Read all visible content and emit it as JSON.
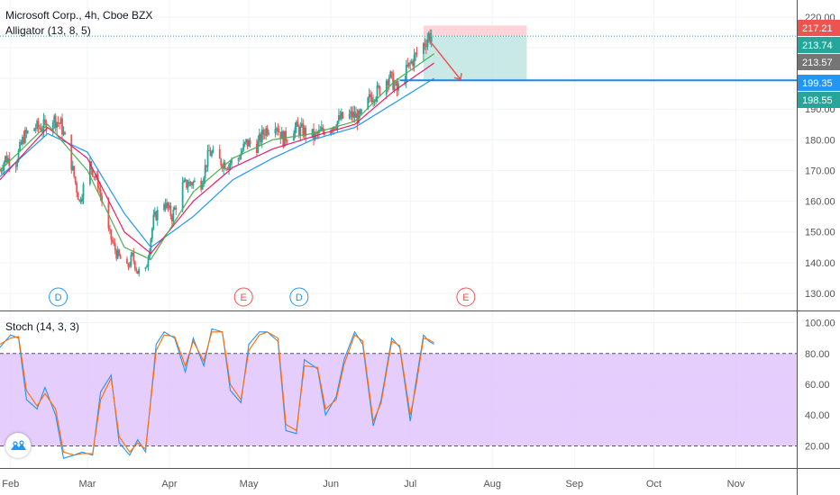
{
  "header": {
    "title": "Microsoft Corp., 4h, Cboe BZX",
    "indicator": "Alligator (13, 8, 5)",
    "stoch_label": "Stoch (14, 3, 3)"
  },
  "colors": {
    "up": "#26a69a",
    "down": "#ef5350",
    "jaw": "#2196f3",
    "teeth": "#e91e63",
    "lips": "#4caf50",
    "stoch_k": "#2196f3",
    "stoch_d": "#ff6d00",
    "stoch_band": "#e1c4fb",
    "target_zone": "#b2dfdb",
    "stop_zone": "#ffcdd2",
    "level_line": "#1e88e5",
    "dividend": "#2196f3",
    "earnings": "#ef5350"
  },
  "price_labels": [
    {
      "text": "217.21",
      "value": 217.21,
      "color": "#ef5350"
    },
    {
      "text": "213.74",
      "value": 213.74,
      "color": "#26a69a"
    },
    {
      "text": "213.57",
      "value": 213.57,
      "color": "#757575"
    },
    {
      "text": "199.35",
      "value": 199.35,
      "color": "#2196f3"
    },
    {
      "text": "198.55",
      "value": 198.55,
      "color": "#26a69a"
    }
  ],
  "events": [
    {
      "type": "dividend",
      "label": "D",
      "date": "2020-02-19"
    },
    {
      "type": "earnings",
      "label": "E",
      "date": "2020-04-29"
    },
    {
      "type": "dividend",
      "label": "D",
      "date": "2020-05-20"
    },
    {
      "type": "earnings",
      "label": "E",
      "date": "2020-07-22"
    }
  ],
  "chart_data": [
    {
      "type": "candlestick",
      "title": "Microsoft Corp., 4h, Cboe BZX",
      "ylim": [
        125,
        222
      ],
      "yticks": [
        130,
        140,
        150,
        160,
        170,
        180,
        190,
        200,
        210,
        220
      ],
      "ytick_labels": [
        "130.00",
        "140.00",
        "150.00",
        "160.00",
        "170.00",
        "180.00",
        "190.00",
        "200.00",
        "210.00",
        "220.00"
      ],
      "x_range": [
        "2020-01-28",
        "2020-11-24"
      ],
      "x_ticks": [
        {
          "date": "2020-02-01",
          "label": "Feb"
        },
        {
          "date": "2020-03-01",
          "label": "Mar"
        },
        {
          "date": "2020-04-01",
          "label": "Apr"
        },
        {
          "date": "2020-05-01",
          "label": "May"
        },
        {
          "date": "2020-06-01",
          "label": "Jun"
        },
        {
          "date": "2020-07-01",
          "label": "Jul"
        },
        {
          "date": "2020-08-01",
          "label": "Aug"
        },
        {
          "date": "2020-09-01",
          "label": "Sep"
        },
        {
          "date": "2020-10-01",
          "label": "Oct"
        },
        {
          "date": "2020-11-01",
          "label": "Nov"
        }
      ],
      "close_series": [
        [
          "2020-01-28",
          170
        ],
        [
          "2020-01-30",
          174
        ],
        [
          "2020-02-03",
          173
        ],
        [
          "2020-02-06",
          181
        ],
        [
          "2020-02-10",
          184
        ],
        [
          "2020-02-13",
          184
        ],
        [
          "2020-02-17",
          187
        ],
        [
          "2020-02-20",
          185
        ],
        [
          "2020-02-24",
          172
        ],
        [
          "2020-02-27",
          160
        ],
        [
          "2020-03-02",
          172
        ],
        [
          "2020-03-05",
          166
        ],
        [
          "2020-03-09",
          150
        ],
        [
          "2020-03-12",
          143
        ],
        [
          "2020-03-16",
          138
        ],
        [
          "2020-03-18",
          142
        ],
        [
          "2020-03-20",
          137
        ],
        [
          "2020-03-23",
          137
        ],
        [
          "2020-03-26",
          154
        ],
        [
          "2020-03-30",
          160
        ],
        [
          "2020-04-02",
          155
        ],
        [
          "2020-04-06",
          165
        ],
        [
          "2020-04-09",
          166
        ],
        [
          "2020-04-13",
          166
        ],
        [
          "2020-04-16",
          176
        ],
        [
          "2020-04-20",
          173
        ],
        [
          "2020-04-23",
          172
        ],
        [
          "2020-04-27",
          174
        ],
        [
          "2020-04-30",
          179
        ],
        [
          "2020-05-04",
          178
        ],
        [
          "2020-05-07",
          183
        ],
        [
          "2020-05-11",
          186
        ],
        [
          "2020-05-14",
          180
        ],
        [
          "2020-05-18",
          184
        ],
        [
          "2020-05-21",
          183
        ],
        [
          "2020-05-26",
          181
        ],
        [
          "2020-05-29",
          183
        ],
        [
          "2020-06-02",
          185
        ],
        [
          "2020-06-05",
          187
        ],
        [
          "2020-06-09",
          188
        ],
        [
          "2020-06-12",
          187
        ],
        [
          "2020-06-16",
          194
        ],
        [
          "2020-06-19",
          196
        ],
        [
          "2020-06-23",
          201
        ],
        [
          "2020-06-26",
          196
        ],
        [
          "2020-06-30",
          203
        ],
        [
          "2020-07-02",
          206
        ],
        [
          "2020-07-06",
          211
        ],
        [
          "2020-07-08",
          214
        ],
        [
          "2020-07-09",
          213.7
        ]
      ],
      "alligator": {
        "jaw": [
          [
            "2020-01-28",
            168
          ],
          [
            "2020-02-15",
            182
          ],
          [
            "2020-03-01",
            176
          ],
          [
            "2020-03-15",
            156
          ],
          [
            "2020-03-25",
            145
          ],
          [
            "2020-04-10",
            155
          ],
          [
            "2020-04-25",
            167
          ],
          [
            "2020-05-10",
            174
          ],
          [
            "2020-05-25",
            180
          ],
          [
            "2020-06-10",
            184
          ],
          [
            "2020-06-25",
            192
          ],
          [
            "2020-07-10",
            200
          ]
        ],
        "teeth": [
          [
            "2020-01-28",
            167
          ],
          [
            "2020-02-15",
            184
          ],
          [
            "2020-03-01",
            174
          ],
          [
            "2020-03-15",
            150
          ],
          [
            "2020-03-25",
            143
          ],
          [
            "2020-04-10",
            160
          ],
          [
            "2020-04-25",
            171
          ],
          [
            "2020-05-10",
            177
          ],
          [
            "2020-05-25",
            181
          ],
          [
            "2020-06-10",
            185
          ],
          [
            "2020-06-25",
            196
          ],
          [
            "2020-07-10",
            205
          ]
        ],
        "lips": [
          [
            "2020-01-28",
            170
          ],
          [
            "2020-02-15",
            185
          ],
          [
            "2020-03-01",
            170
          ],
          [
            "2020-03-15",
            145
          ],
          [
            "2020-03-25",
            141
          ],
          [
            "2020-04-10",
            163
          ],
          [
            "2020-04-25",
            174
          ],
          [
            "2020-05-10",
            180
          ],
          [
            "2020-05-25",
            182
          ],
          [
            "2020-06-10",
            186
          ],
          [
            "2020-06-25",
            199
          ],
          [
            "2020-07-10",
            208
          ]
        ]
      },
      "short_position": {
        "entry": 213.74,
        "stop": 217.21,
        "target": 199.35,
        "start": "2020-07-06",
        "end": "2020-08-14"
      },
      "horizontal_line": 199.35
    },
    {
      "type": "line",
      "title": "Stoch (14, 3, 3)",
      "ylim": [
        8,
        105
      ],
      "yticks": [
        20,
        40,
        60,
        80,
        100
      ],
      "ytick_labels": [
        "20.00",
        "40.00",
        "60.00",
        "80.00",
        "100.00"
      ],
      "band": [
        20,
        80
      ],
      "series": [
        {
          "key": "k",
          "values": [
            [
              "2020-01-28",
              84
            ],
            [
              "2020-02-01",
              92
            ],
            [
              "2020-02-04",
              90
            ],
            [
              "2020-02-07",
              50
            ],
            [
              "2020-02-11",
              44
            ],
            [
              "2020-02-14",
              58
            ],
            [
              "2020-02-18",
              40
            ],
            [
              "2020-02-21",
              12
            ],
            [
              "2020-02-25",
              14
            ],
            [
              "2020-02-28",
              16
            ],
            [
              "2020-03-03",
              14
            ],
            [
              "2020-03-06",
              55
            ],
            [
              "2020-03-10",
              66
            ],
            [
              "2020-03-13",
              22
            ],
            [
              "2020-03-17",
              14
            ],
            [
              "2020-03-20",
              24
            ],
            [
              "2020-03-23",
              16
            ],
            [
              "2020-03-27",
              86
            ],
            [
              "2020-03-30",
              94
            ],
            [
              "2020-04-03",
              90
            ],
            [
              "2020-04-07",
              68
            ],
            [
              "2020-04-10",
              90
            ],
            [
              "2020-04-14",
              72
            ],
            [
              "2020-04-17",
              96
            ],
            [
              "2020-04-21",
              94
            ],
            [
              "2020-04-24",
              56
            ],
            [
              "2020-04-28",
              48
            ],
            [
              "2020-05-01",
              86
            ],
            [
              "2020-05-05",
              94
            ],
            [
              "2020-05-08",
              94
            ],
            [
              "2020-05-12",
              88
            ],
            [
              "2020-05-15",
              30
            ],
            [
              "2020-05-19",
              28
            ],
            [
              "2020-05-22",
              76
            ],
            [
              "2020-05-27",
              70
            ],
            [
              "2020-05-30",
              40
            ],
            [
              "2020-06-03",
              52
            ],
            [
              "2020-06-06",
              76
            ],
            [
              "2020-06-10",
              94
            ],
            [
              "2020-06-13",
              86
            ],
            [
              "2020-06-17",
              33
            ],
            [
              "2020-06-20",
              50
            ],
            [
              "2020-06-24",
              90
            ],
            [
              "2020-06-27",
              84
            ],
            [
              "2020-07-01",
              36
            ],
            [
              "2020-07-03",
              60
            ],
            [
              "2020-07-06",
              92
            ],
            [
              "2020-07-08",
              88
            ],
            [
              "2020-07-10",
              86
            ]
          ]
        },
        {
          "key": "d",
          "values": [
            [
              "2020-01-28",
              86
            ],
            [
              "2020-02-01",
              90
            ],
            [
              "2020-02-04",
              91
            ],
            [
              "2020-02-07",
              56
            ],
            [
              "2020-02-11",
              46
            ],
            [
              "2020-02-14",
              54
            ],
            [
              "2020-02-18",
              44
            ],
            [
              "2020-02-21",
              16
            ],
            [
              "2020-02-25",
              14
            ],
            [
              "2020-02-28",
              15
            ],
            [
              "2020-03-03",
              15
            ],
            [
              "2020-03-06",
              50
            ],
            [
              "2020-03-10",
              64
            ],
            [
              "2020-03-13",
              26
            ],
            [
              "2020-03-17",
              16
            ],
            [
              "2020-03-20",
              22
            ],
            [
              "2020-03-23",
              18
            ],
            [
              "2020-03-27",
              82
            ],
            [
              "2020-03-30",
              92
            ],
            [
              "2020-04-03",
              91
            ],
            [
              "2020-04-07",
              72
            ],
            [
              "2020-04-10",
              88
            ],
            [
              "2020-04-14",
              75
            ],
            [
              "2020-04-17",
              94
            ],
            [
              "2020-04-21",
              94
            ],
            [
              "2020-04-24",
              60
            ],
            [
              "2020-04-28",
              50
            ],
            [
              "2020-05-01",
              82
            ],
            [
              "2020-05-05",
              92
            ],
            [
              "2020-05-08",
              94
            ],
            [
              "2020-05-12",
              90
            ],
            [
              "2020-05-15",
              34
            ],
            [
              "2020-05-19",
              30
            ],
            [
              "2020-05-22",
              72
            ],
            [
              "2020-05-27",
              71
            ],
            [
              "2020-05-30",
              44
            ],
            [
              "2020-06-03",
              50
            ],
            [
              "2020-06-06",
              73
            ],
            [
              "2020-06-10",
              92
            ],
            [
              "2020-06-13",
              88
            ],
            [
              "2020-06-17",
              36
            ],
            [
              "2020-06-20",
              48
            ],
            [
              "2020-06-24",
              88
            ],
            [
              "2020-06-27",
              85
            ],
            [
              "2020-07-01",
              40
            ],
            [
              "2020-07-03",
              57
            ],
            [
              "2020-07-06",
              90
            ],
            [
              "2020-07-08",
              89
            ],
            [
              "2020-07-10",
              87
            ]
          ]
        }
      ]
    }
  ]
}
